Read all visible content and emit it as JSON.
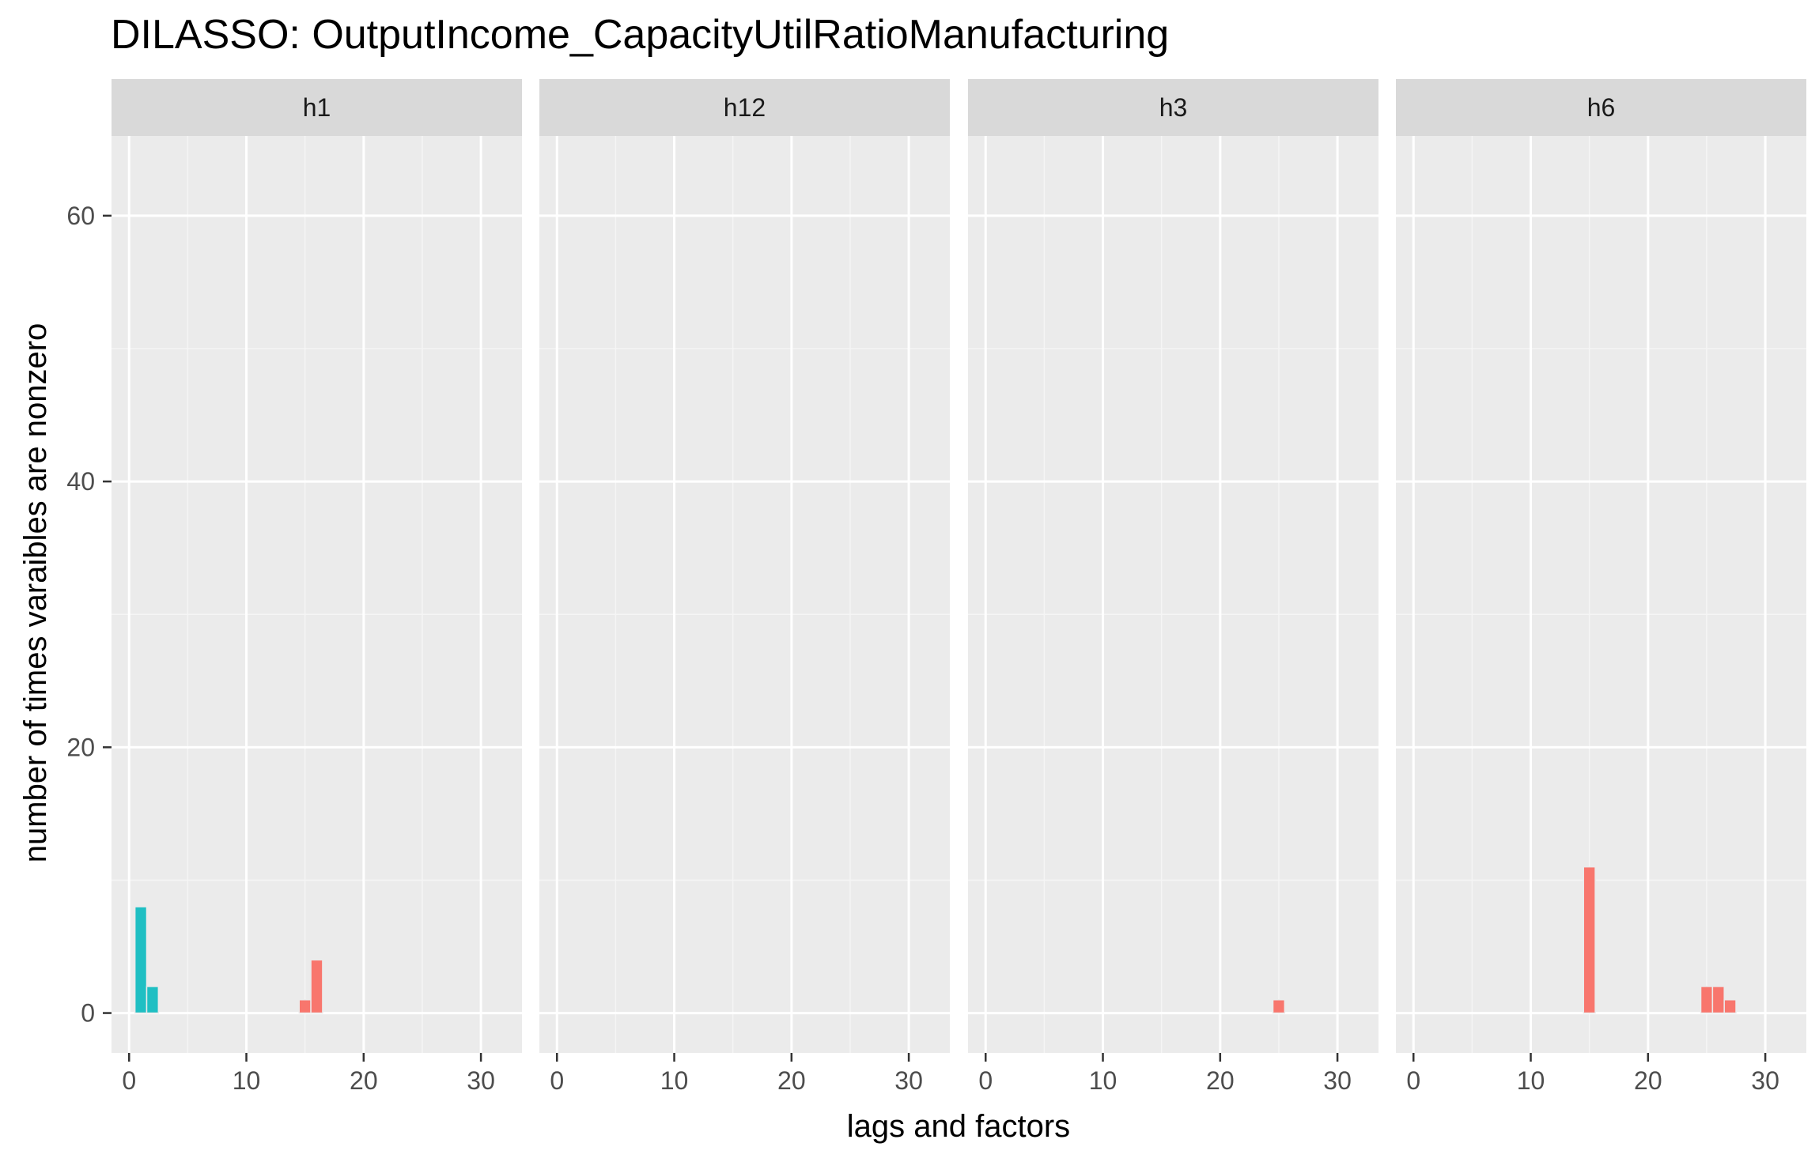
{
  "chart_data": {
    "type": "bar",
    "title": "DILASSO: OutputIncome_CapacityUtilRatioManufacturing",
    "xlabel": "lags and factors",
    "ylabel": "number of times varaibles are nonzero",
    "xlim": [
      -1.5,
      33.5
    ],
    "ylim": [
      -3,
      66
    ],
    "x_ticks": [
      0,
      10,
      20,
      30
    ],
    "y_ticks": [
      0,
      20,
      40,
      60
    ],
    "grid": true,
    "legend": "none",
    "colors": {
      "teal": "#1fbfc3",
      "red": "#f8766d"
    },
    "panels": [
      {
        "label": "h1",
        "bars": [
          {
            "x": 1,
            "value": 8,
            "color": "teal"
          },
          {
            "x": 2,
            "value": 2,
            "color": "teal"
          },
          {
            "x": 15,
            "value": 1,
            "color": "red"
          },
          {
            "x": 16,
            "value": 4,
            "color": "red"
          }
        ]
      },
      {
        "label": "h12",
        "bars": []
      },
      {
        "label": "h3",
        "bars": [
          {
            "x": 25,
            "value": 1,
            "color": "red"
          }
        ]
      },
      {
        "label": "h6",
        "bars": [
          {
            "x": 15,
            "value": 11,
            "color": "red"
          },
          {
            "x": 25,
            "value": 2,
            "color": "red"
          },
          {
            "x": 26,
            "value": 2,
            "color": "red"
          },
          {
            "x": 27,
            "value": 1,
            "color": "red"
          }
        ]
      }
    ]
  }
}
